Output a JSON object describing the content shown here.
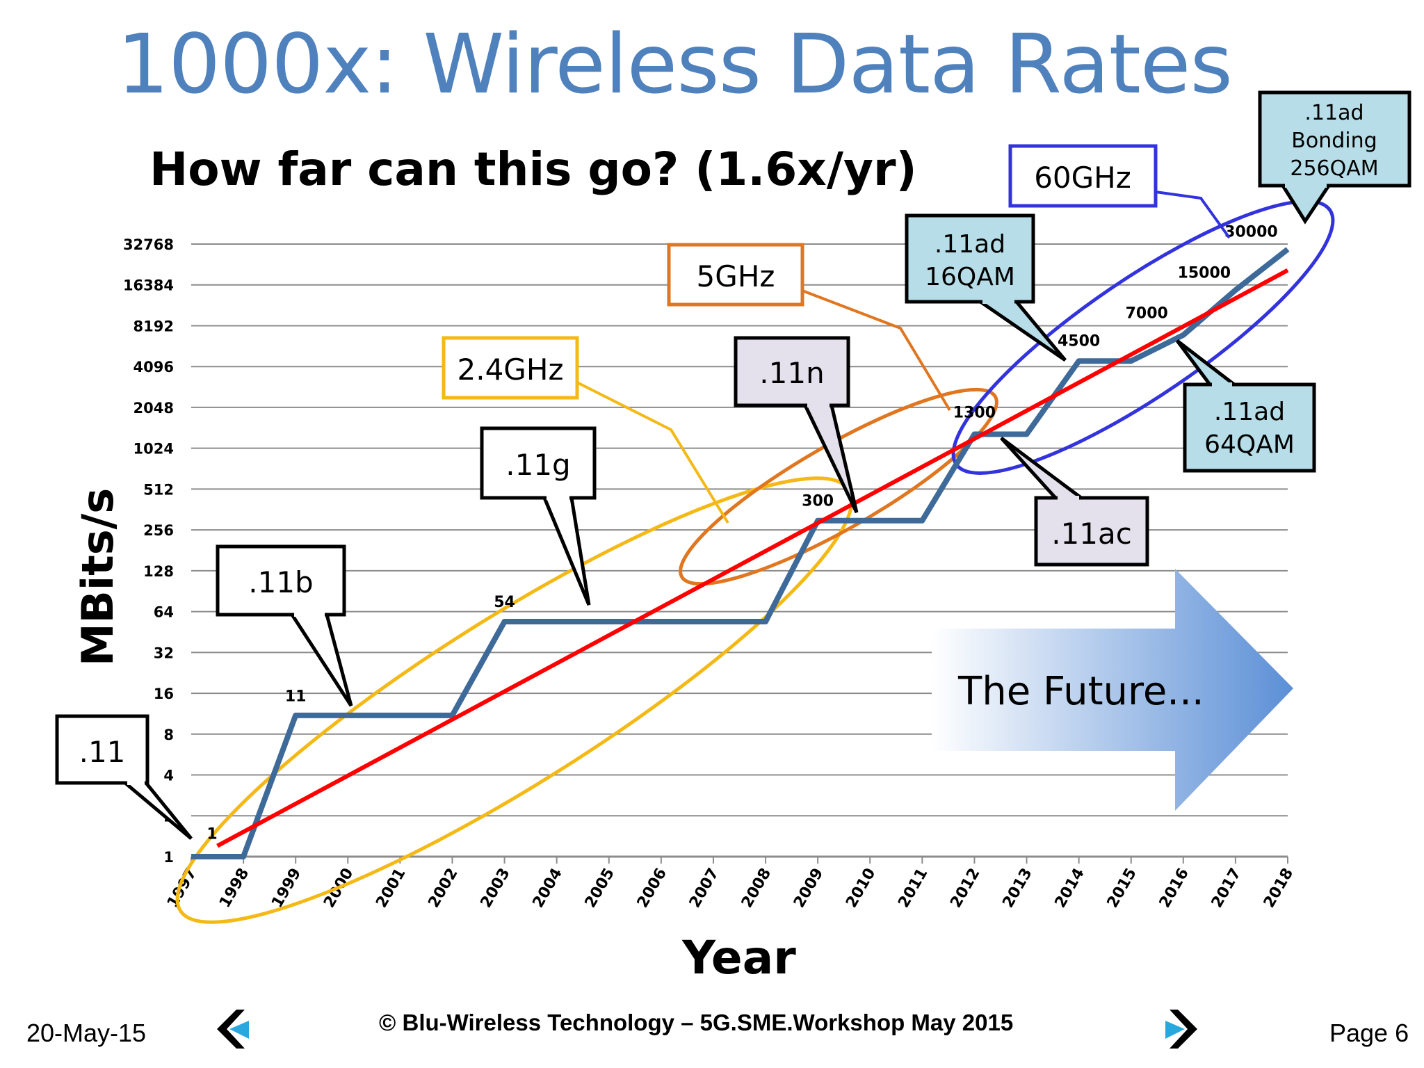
{
  "slide": {
    "title": "1000x: Wireless Data Rates",
    "subtitle": "How far can this go? (1.6x/yr)",
    "footer_date": "20-May-15",
    "footer_copyright": "© Blu-Wireless Technology – 5G.SME.Workshop May  2015",
    "footer_page": "Page 6",
    "nav_prev_icon": "chevron-left-icon",
    "nav_next_icon": "chevron-right-icon"
  },
  "chart_data": {
    "type": "line",
    "xlabel": "Year",
    "ylabel": "MBits/s",
    "y_scale": "log2",
    "ylim": [
      1,
      32768
    ],
    "xlim": [
      1997,
      2018
    ],
    "grid": true,
    "y_ticks": [
      "1",
      "2",
      "4",
      "8",
      "16",
      "32",
      "64",
      "128",
      "256",
      "512",
      "1024",
      "2048",
      "4096",
      "8192",
      "16384",
      "32768"
    ],
    "x_ticks": [
      "1997",
      "1998",
      "1999",
      "2000",
      "2001",
      "2002",
      "2003",
      "2004",
      "2005",
      "2006",
      "2007",
      "2008",
      "2009",
      "2010",
      "2011",
      "2012",
      "2013",
      "2014",
      "2015",
      "2016",
      "2017",
      "2018"
    ],
    "series": [
      {
        "color": "#3E6A9A",
        "points": [
          [
            1997,
            1
          ],
          [
            1998,
            1
          ],
          [
            1999,
            11
          ],
          [
            2002,
            11
          ],
          [
            2003,
            54
          ],
          [
            2008,
            54
          ],
          [
            2009,
            300
          ],
          [
            2011,
            300
          ],
          [
            2012,
            1300
          ],
          [
            2013,
            1300
          ],
          [
            2014,
            4500
          ],
          [
            2015,
            4500
          ],
          [
            2016,
            7000
          ],
          [
            2017,
            15000
          ],
          [
            2018,
            30000
          ]
        ]
      },
      {
        "color": "#FF0000",
        "points": [
          [
            1997.5,
            1.2
          ],
          [
            2018,
            21000
          ]
        ]
      }
    ],
    "data_labels": [
      {
        "x": 1997.4,
        "y": 1.35,
        "text": "1"
      },
      {
        "x": 1999,
        "y": 14,
        "text": "11"
      },
      {
        "x": 2003,
        "y": 69,
        "text": "54"
      },
      {
        "x": 2009,
        "y": 385,
        "text": "300"
      },
      {
        "x": 2012,
        "y": 1720,
        "text": "1300"
      },
      {
        "x": 2014,
        "y": 5800,
        "text": "4500"
      },
      {
        "x": 2015.3,
        "y": 9300,
        "text": "7000"
      },
      {
        "x": 2016.4,
        "y": 18500,
        "text": "15000"
      },
      {
        "x": 2017.3,
        "y": 37000,
        "text": "30000"
      }
    ],
    "callouts": [
      {
        "text": ".11",
        "fill": "#FFFFFF"
      },
      {
        "text": ".11b",
        "fill": "#FFFFFF"
      },
      {
        "text": ".11g",
        "fill": "#FFFFFF"
      },
      {
        "text": ".11n",
        "fill": "#E4E1EC"
      },
      {
        "text": ".11ac",
        "fill": "#E4E1EC"
      },
      {
        "lines": [
          ".11ad",
          "16QAM"
        ],
        "fill": "#B7DEE8"
      },
      {
        "lines": [
          ".11ad",
          "64QAM"
        ],
        "fill": "#B7DEE8"
      },
      {
        "lines": [
          ".11ad",
          "Bonding",
          "256QAM"
        ],
        "fill": "#B7DEE8"
      }
    ],
    "bands": [
      {
        "text": "2.4GHz",
        "color": "#F4B915"
      },
      {
        "text": "5GHz",
        "color": "#E0761F"
      },
      {
        "text": "60GHz",
        "color": "#3333DD"
      }
    ],
    "annotation": {
      "text": "The Future...",
      "color": "#5B8FD6"
    }
  }
}
